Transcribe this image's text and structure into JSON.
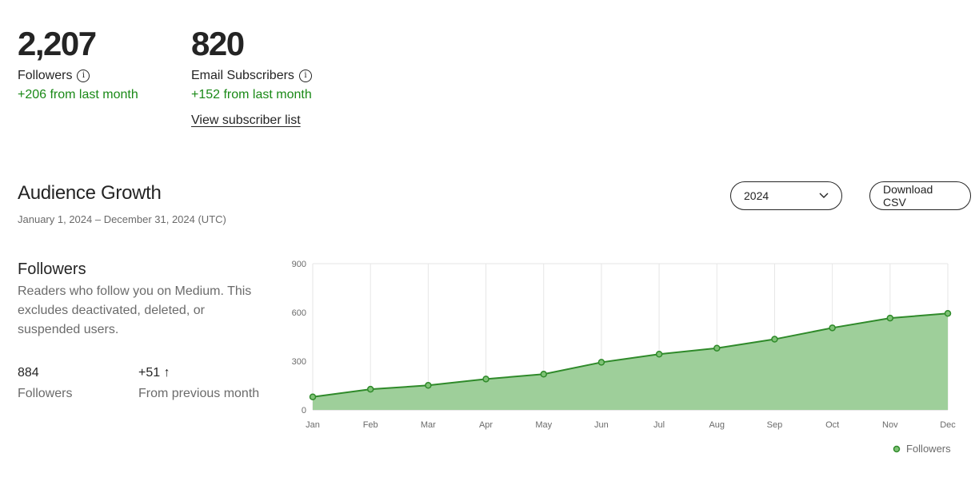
{
  "stats": {
    "followers": {
      "value": "2,207",
      "label": "Followers",
      "delta": "+206 from last month"
    },
    "email": {
      "value": "820",
      "label": "Email Subscribers",
      "delta": "+152 from last month",
      "link": "View subscriber list"
    }
  },
  "growth": {
    "title": "Audience Growth",
    "date_range": "January 1, 2024 – December 31, 2024 (UTC)",
    "year_select": "2024",
    "download_label": "Download CSV"
  },
  "panel": {
    "title": "Followers",
    "description": "Readers who follow you on Medium. This excludes deactivated, deleted, or suspended users.",
    "metric1_value": "884",
    "metric1_label": "Followers",
    "metric2_value": "+51 ↑",
    "metric2_label": "From previous month"
  },
  "colors": {
    "accent_green": "#1a8917",
    "area_fill": "#9ecf9a",
    "line": "#2f8a2a"
  },
  "chart_data": {
    "type": "area",
    "categories": [
      "Jan",
      "Feb",
      "Mar",
      "Apr",
      "May",
      "Jun",
      "Jul",
      "Aug",
      "Sep",
      "Oct",
      "Nov",
      "Dec"
    ],
    "series": [
      {
        "name": "Followers",
        "values": [
          80,
          127,
          151,
          190,
          220,
          293,
          343,
          380,
          435,
          505,
          565,
          594
        ]
      }
    ],
    "ylim": [
      0,
      900
    ],
    "yticks": [
      "0",
      "300",
      "600",
      "900"
    ],
    "grid": true,
    "legend": "bottom-right"
  }
}
